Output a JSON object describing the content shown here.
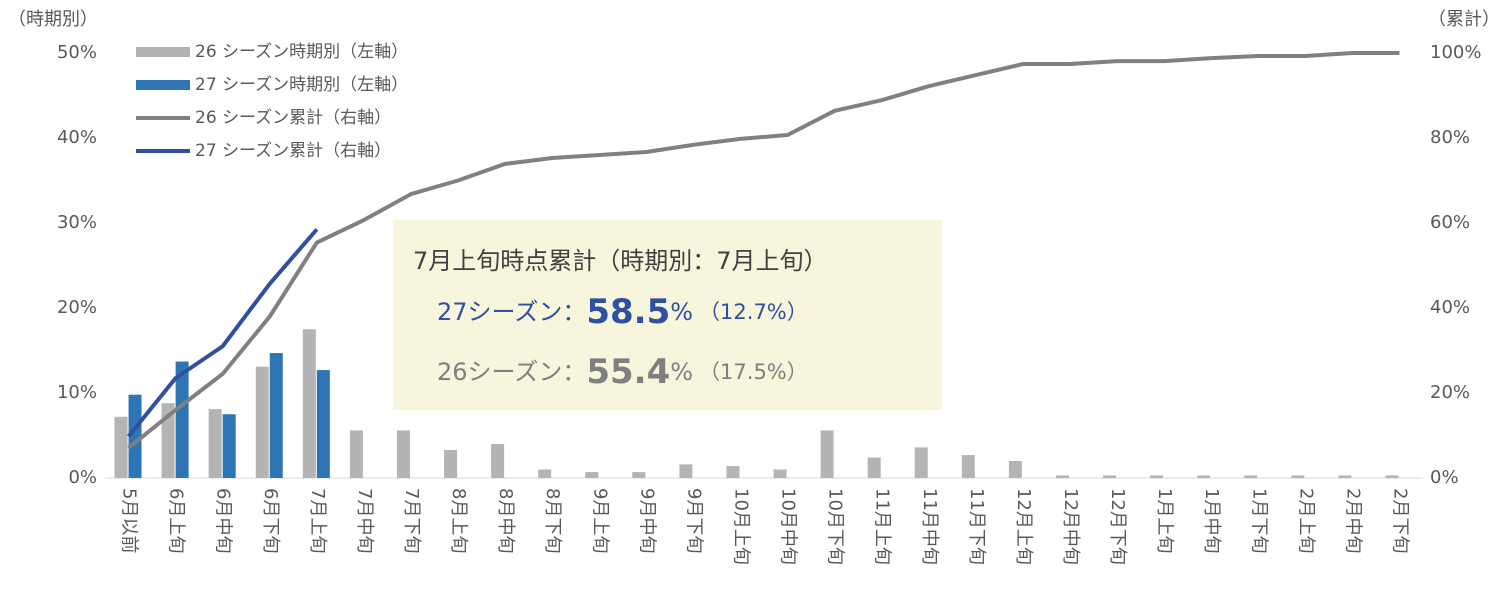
{
  "chart_data": {
    "type": "bar",
    "y_label": "（時期別）",
    "y2_label": "（累計）",
    "categories": [
      "5月以前",
      "6月上旬",
      "6月中旬",
      "6月下旬",
      "7月上旬",
      "7月中旬",
      "7月下旬",
      "8月上旬",
      "8月中旬",
      "8月下旬",
      "9月上旬",
      "9月中旬",
      "9月下旬",
      "10月上旬",
      "10月中旬",
      "10月下旬",
      "11月上旬",
      "11月中旬",
      "11月下旬",
      "12月上旬",
      "12月中旬",
      "12月下旬",
      "1月上旬",
      "1月中旬",
      "1月下旬",
      "2月上旬",
      "2月中旬",
      "2月下旬"
    ],
    "ylim": [
      0,
      50
    ],
    "yticks": [
      {
        "value": 0,
        "label": "0%"
      },
      {
        "value": 10,
        "label": "10%"
      },
      {
        "value": 20,
        "label": "20%"
      },
      {
        "value": 30,
        "label": "30%"
      },
      {
        "value": 40,
        "label": "40%"
      },
      {
        "value": 50,
        "label": "50%"
      }
    ],
    "y2lim": [
      0,
      100
    ],
    "y2ticks": [
      {
        "value": 0,
        "label": "0%"
      },
      {
        "value": 20,
        "label": "20%"
      },
      {
        "value": 40,
        "label": "40%"
      },
      {
        "value": 60,
        "label": "60%"
      },
      {
        "value": 80,
        "label": "80%"
      },
      {
        "value": 100,
        "label": "100%"
      }
    ],
    "grid": false,
    "legend": "top-left",
    "series": [
      {
        "name": "26 シーズン時期別（左軸）",
        "type": "bar",
        "axis": "y",
        "color": "#b4b4b4",
        "values": [
          7.2,
          8.8,
          8.1,
          13.1,
          17.5,
          5.6,
          5.6,
          3.3,
          4.0,
          1.0,
          0.7,
          0.7,
          1.6,
          1.4,
          1.0,
          5.6,
          2.4,
          3.6,
          2.7,
          2.0,
          0.3,
          0.3,
          0.3,
          0.3,
          0.3,
          0.3,
          0.3,
          0.3
        ]
      },
      {
        "name": "27 シーズン時期別（左軸）",
        "type": "bar",
        "axis": "y",
        "color": "#2e75b6",
        "values": [
          9.8,
          13.7,
          7.5,
          14.7,
          12.7,
          null,
          null,
          null,
          null,
          null,
          null,
          null,
          null,
          null,
          null,
          null,
          null,
          null,
          null,
          null,
          null,
          null,
          null,
          null,
          null,
          null,
          null,
          null
        ]
      },
      {
        "name": "26 シーズン累計（右軸）",
        "type": "line",
        "axis": "y2",
        "color": "#808080",
        "values": [
          7.1,
          16.0,
          24.5,
          38.0,
          55.4,
          60.7,
          66.8,
          70.0,
          73.9,
          75.3,
          76.0,
          76.7,
          78.4,
          79.8,
          80.7,
          86.4,
          88.9,
          92.2,
          94.8,
          97.4,
          97.4,
          98.1,
          98.1,
          98.8,
          99.3,
          99.3,
          100,
          100
        ]
      },
      {
        "name": "27 シーズン累計（右軸）",
        "type": "line",
        "axis": "y2",
        "color": "#2f4fa0",
        "values": [
          9.8,
          23.5,
          31.0,
          45.7,
          58.5,
          null,
          null,
          null,
          null,
          null,
          null,
          null,
          null,
          null,
          null,
          null,
          null,
          null,
          null,
          null,
          null,
          null,
          null,
          null,
          null,
          null,
          null,
          null
        ]
      }
    ],
    "annotation": {
      "title": "7月上旬時点累計（時期別：7月上旬）",
      "lines": [
        {
          "label": "27シーズン：",
          "value": 58.5,
          "unit": "%",
          "note": "（12.7%）",
          "color": "#2f4fa0"
        },
        {
          "label": "26シーズン：",
          "value": 55.4,
          "unit": "%",
          "note": "（17.5%）",
          "color": "#7f7f7f"
        }
      ]
    }
  }
}
